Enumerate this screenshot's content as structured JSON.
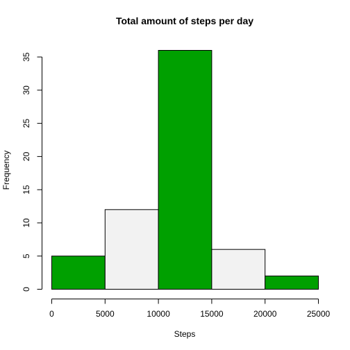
{
  "chart_data": {
    "type": "bar",
    "title": "Total amount of steps per day",
    "xlabel": "Steps",
    "ylabel": "Frequency",
    "bins": [
      {
        "from": 0,
        "to": 5000,
        "value": 5
      },
      {
        "from": 5000,
        "to": 10000,
        "value": 12
      },
      {
        "from": 10000,
        "to": 15000,
        "value": 36
      },
      {
        "from": 15000,
        "to": 20000,
        "value": 6
      },
      {
        "from": 20000,
        "to": 25000,
        "value": 2
      }
    ],
    "bar_colors": [
      "#00a000",
      "#f2f2f2",
      "#00a000",
      "#f2f2f2",
      "#00a000"
    ],
    "xlim": [
      0,
      25000
    ],
    "ylim": [
      0,
      36
    ],
    "x_ticks": [
      0,
      5000,
      10000,
      15000,
      20000,
      25000
    ],
    "y_ticks": [
      0,
      5,
      10,
      15,
      20,
      25,
      30,
      35
    ],
    "grid": false,
    "legend": "none"
  }
}
